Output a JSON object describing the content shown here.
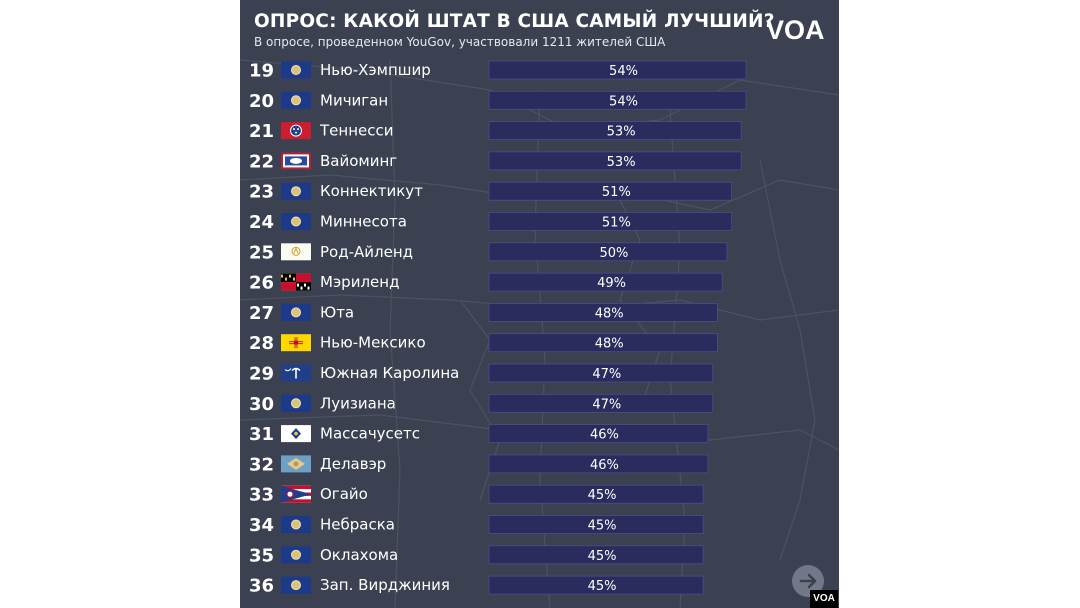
{
  "header": {
    "title": "ОПРОС: КАКОЙ ШТАТ В США САМЫЙ ЛУЧШИЙ?",
    "subtitle": "В опросе, проведенном YouGov, участвовали 1211 жителей США",
    "logo_text": "VOA"
  },
  "badge": {
    "text": "VOA"
  },
  "colors": {
    "background": "#3b4150",
    "bar_fill": "#2a2c5e",
    "bar_stroke": "#4a4f86",
    "text": "#ffffff"
  },
  "icons": {
    "next": "arrow-right-icon"
  },
  "chart_data": {
    "type": "bar",
    "orientation": "horizontal",
    "title": "ОПРОС: КАКОЙ ШТАТ В США САМЫЙ ЛУЧШИЙ?",
    "subtitle": "В опросе, проведенном YouGov, участвовали 1211 жителей США",
    "xlim": [
      0,
      54
    ],
    "grid": false,
    "legend": "none",
    "rows": [
      {
        "rank": "19",
        "state": "Нью-Хэмпшир",
        "value": 54,
        "label": "54%",
        "flag": "new-hampshire-flag-icon"
      },
      {
        "rank": "20",
        "state": "Мичиган",
        "value": 54,
        "label": "54%",
        "flag": "michigan-flag-icon"
      },
      {
        "rank": "21",
        "state": "Теннесси",
        "value": 53,
        "label": "53%",
        "flag": "tennessee-flag-icon"
      },
      {
        "rank": "22",
        "state": "Вайоминг",
        "value": 53,
        "label": "53%",
        "flag": "wyoming-flag-icon"
      },
      {
        "rank": "23",
        "state": "Коннектикут",
        "value": 51,
        "label": "51%",
        "flag": "connecticut-flag-icon"
      },
      {
        "rank": "24",
        "state": "Миннесота",
        "value": 51,
        "label": "51%",
        "flag": "minnesota-flag-icon"
      },
      {
        "rank": "25",
        "state": "Род-Айленд",
        "value": 50,
        "label": "50%",
        "flag": "rhode-island-flag-icon"
      },
      {
        "rank": "26",
        "state": "Мэриленд",
        "value": 49,
        "label": "49%",
        "flag": "maryland-flag-icon"
      },
      {
        "rank": "27",
        "state": "Юта",
        "value": 48,
        "label": "48%",
        "flag": "utah-flag-icon"
      },
      {
        "rank": "28",
        "state": "Нью-Мексико",
        "value": 48,
        "label": "48%",
        "flag": "new-mexico-flag-icon"
      },
      {
        "rank": "29",
        "state": "Южная Каролина",
        "value": 47,
        "label": "47%",
        "flag": "south-carolina-flag-icon"
      },
      {
        "rank": "30",
        "state": "Луизиана",
        "value": 47,
        "label": "47%",
        "flag": "louisiana-flag-icon"
      },
      {
        "rank": "31",
        "state": "Массачусетс",
        "value": 46,
        "label": "46%",
        "flag": "massachusetts-flag-icon"
      },
      {
        "rank": "32",
        "state": "Делавэр",
        "value": 46,
        "label": "46%",
        "flag": "delaware-flag-icon"
      },
      {
        "rank": "33",
        "state": "Огайо",
        "value": 45,
        "label": "45%",
        "flag": "ohio-flag-icon"
      },
      {
        "rank": "34",
        "state": "Небраска",
        "value": 45,
        "label": "45%",
        "flag": "nebraska-flag-icon"
      },
      {
        "rank": "35",
        "state": "Оклахома",
        "value": 45,
        "label": "45%",
        "flag": "oklahoma-flag-icon"
      },
      {
        "rank": "36",
        "state": "Зап. Вирджиния",
        "value": 45,
        "label": "45%",
        "flag": "west-virginia-flag-icon"
      }
    ]
  }
}
